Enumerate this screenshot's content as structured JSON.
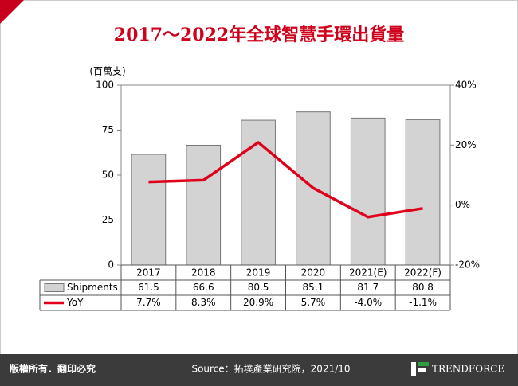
{
  "chart_data": {
    "type": "bar-line",
    "title": "2017～2022年全球智慧手環出貨量",
    "y_label": "(百萬支)",
    "categories": [
      "2017",
      "2018",
      "2019",
      "2020",
      "2021(E)",
      "2022(F)"
    ],
    "series": [
      {
        "name": "Shipments",
        "type": "bar",
        "color": "#d3d3d3",
        "values": [
          61.5,
          66.6,
          80.5,
          85.1,
          81.7,
          80.8
        ]
      },
      {
        "name": "YoY",
        "type": "line",
        "axis": "y2",
        "color": "#e0001b",
        "values": [
          7.7,
          8.3,
          20.9,
          5.7,
          -4.0,
          -1.1
        ],
        "value_labels": [
          "7.7%",
          "8.3%",
          "20.9%",
          "5.7%",
          "-4.0%",
          "-1.1%"
        ]
      }
    ],
    "ylim": [
      0,
      100
    ],
    "yticks": [
      0,
      25,
      50,
      75,
      100
    ],
    "y2lim": [
      -20,
      40
    ],
    "y2ticks": [
      {
        "value": -20,
        "label": "-20%"
      },
      {
        "value": 0,
        "label": "0%"
      },
      {
        "value": 20,
        "label": "20%"
      },
      {
        "value": 40,
        "label": "40%"
      }
    ],
    "grid": false
  },
  "footer": {
    "copyright": "版權所有．翻印必究",
    "source": "Source：拓墣產業研究院，2021/10",
    "logo": "TRENDFORCE"
  }
}
